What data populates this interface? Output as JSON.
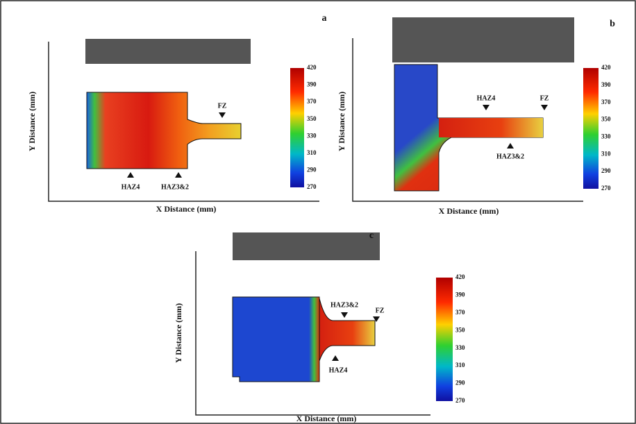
{
  "panels": [
    {
      "label": "a",
      "y_axis_label": "Y Distance (mm)",
      "x_axis_label": "X Distance (mm)",
      "annotations": [
        "FZ",
        "HAZ4",
        "HAZ3&2"
      ],
      "colorbar_ticks": [
        420,
        390,
        370,
        350,
        330,
        310,
        290,
        270
      ]
    },
    {
      "label": "b",
      "y_axis_label": "Y Distance (mm)",
      "x_axis_label": "X Distance (mm)",
      "annotations": [
        "HAZ4",
        "FZ",
        "HAZ3&2"
      ],
      "colorbar_ticks": [
        420,
        390,
        370,
        350,
        330,
        310,
        290,
        270
      ]
    },
    {
      "label": "c",
      "y_axis_label": "Y Distance (mm)",
      "x_axis_label": "X Distance (mm)",
      "annotations": [
        "HAZ3&2",
        "FZ",
        "HAZ4"
      ],
      "colorbar_ticks": [
        420,
        390,
        370,
        350,
        330,
        310,
        290,
        270
      ]
    }
  ]
}
